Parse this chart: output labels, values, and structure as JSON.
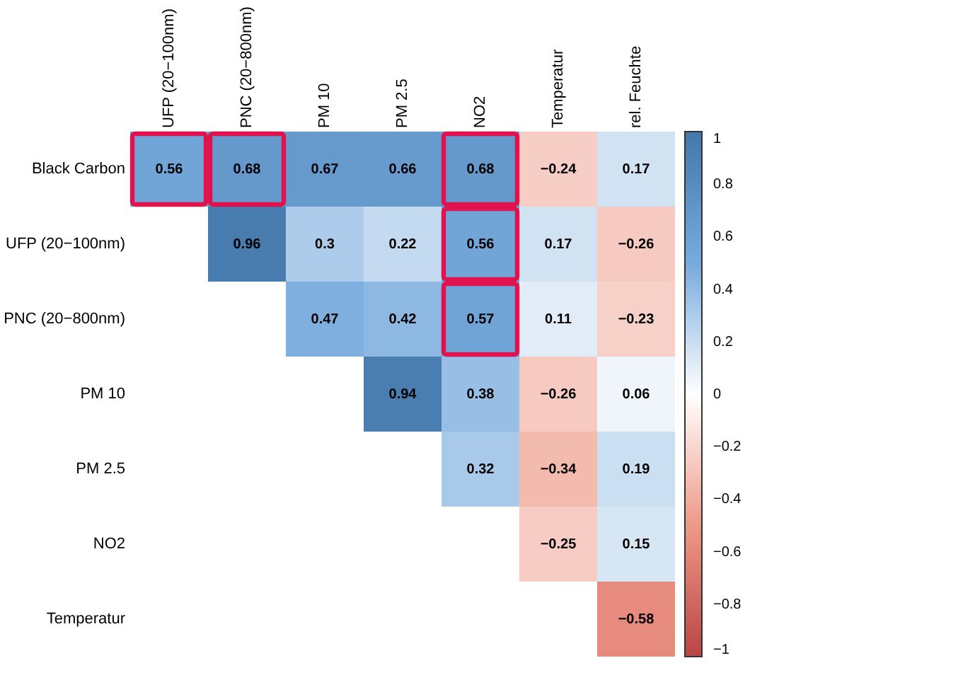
{
  "chart_data": {
    "type": "heatmap",
    "categories": [
      "UFP (20−100nm)",
      "PNC (20−800nm)",
      "PM 10",
      "PM 2.5",
      "NO2",
      "Temperatur",
      "rel. Feuchte"
    ],
    "y_categories": [
      "Black Carbon",
      "UFP (20−100nm)",
      "PNC (20−800nm)",
      "PM 10",
      "PM 2.5",
      "NO2",
      "Temperatur"
    ],
    "cells": [
      [
        0.56,
        0.68,
        0.67,
        0.66,
        0.68,
        -0.24,
        0.17
      ],
      [
        null,
        0.96,
        0.3,
        0.22,
        0.56,
        0.17,
        -0.26
      ],
      [
        null,
        null,
        0.47,
        0.42,
        0.57,
        0.11,
        -0.23
      ],
      [
        null,
        null,
        null,
        0.94,
        0.38,
        -0.26,
        0.06
      ],
      [
        null,
        null,
        null,
        null,
        0.32,
        -0.34,
        0.19
      ],
      [
        null,
        null,
        null,
        null,
        null,
        -0.25,
        0.15
      ],
      [
        null,
        null,
        null,
        null,
        null,
        null,
        -0.58
      ]
    ],
    "cell_labels": [
      [
        "0.56",
        "0.68",
        "0.67",
        "0.66",
        "0.68",
        "−0.24",
        "0.17"
      ],
      [
        null,
        "0.96",
        "0.3",
        "0.22",
        "0.56",
        "0.17",
        "−0.26"
      ],
      [
        null,
        null,
        "0.47",
        "0.42",
        "0.57",
        "0.11",
        "−0.23"
      ],
      [
        null,
        null,
        null,
        "0.94",
        "0.38",
        "−0.26",
        "0.06"
      ],
      [
        null,
        null,
        null,
        null,
        "0.32",
        "−0.34",
        "0.19"
      ],
      [
        null,
        null,
        null,
        null,
        null,
        "−0.25",
        "0.15"
      ],
      [
        null,
        null,
        null,
        null,
        null,
        null,
        "−0.58"
      ]
    ],
    "data_labels": true,
    "clim": [
      -1,
      1
    ],
    "cticks": [
      {
        "value": -1,
        "label": "−1"
      },
      {
        "value": -0.8,
        "label": "−0.8"
      },
      {
        "value": -0.6,
        "label": "−0.6"
      },
      {
        "value": -0.4,
        "label": "−0.4"
      },
      {
        "value": -0.2,
        "label": "−0.2"
      },
      0,
      0.2,
      0.4,
      0.6,
      0.8,
      1
    ]
  }
}
